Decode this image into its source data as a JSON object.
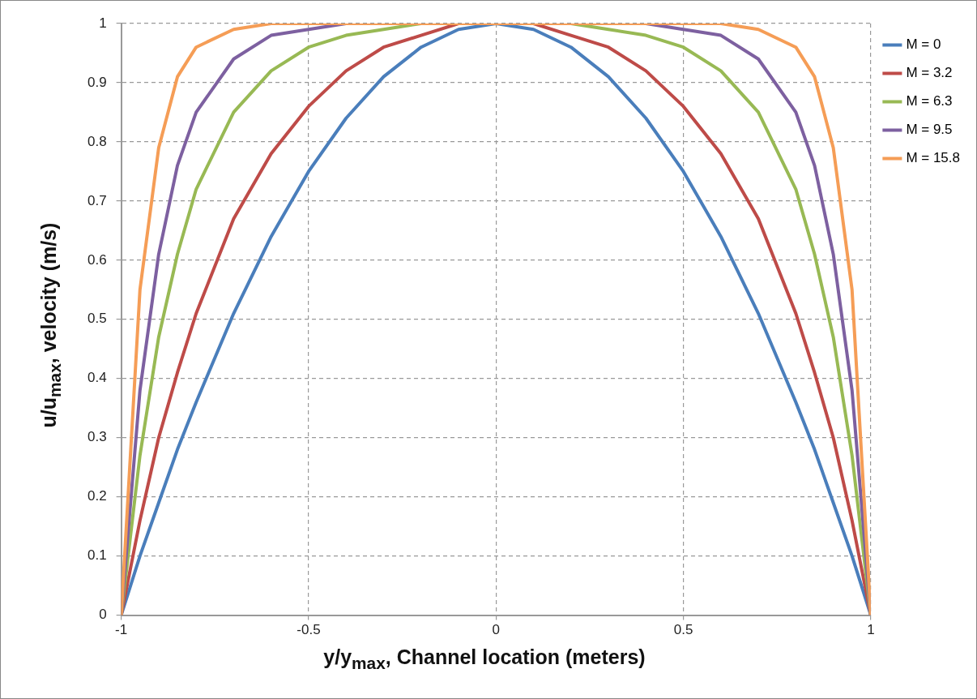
{
  "chart_data": {
    "type": "line",
    "xlabel": "y/y$_{max}$, Channel location (meters)",
    "ylabel": "u/u$_{max}$, velocity (m/s)",
    "x": [
      -1,
      -0.95,
      -0.9,
      -0.85,
      -0.8,
      -0.7,
      -0.6,
      -0.5,
      -0.4,
      -0.3,
      -0.2,
      -0.1,
      0,
      0.1,
      0.2,
      0.3,
      0.4,
      0.5,
      0.6,
      0.7,
      0.8,
      0.85,
      0.9,
      0.95,
      1
    ],
    "series": [
      {
        "name": "M = 0",
        "color": "#4a7ebb",
        "values": [
          0,
          0.1,
          0.19,
          0.28,
          0.36,
          0.51,
          0.64,
          0.75,
          0.84,
          0.91,
          0.96,
          0.99,
          1,
          0.99,
          0.96,
          0.91,
          0.84,
          0.75,
          0.64,
          0.51,
          0.36,
          0.28,
          0.19,
          0.1,
          0
        ]
      },
      {
        "name": "M = 3.2",
        "color": "#be4b48",
        "values": [
          0,
          0.16,
          0.3,
          0.41,
          0.51,
          0.67,
          0.78,
          0.86,
          0.92,
          0.96,
          0.98,
          1,
          1,
          1,
          0.98,
          0.96,
          0.92,
          0.86,
          0.78,
          0.67,
          0.51,
          0.41,
          0.3,
          0.16,
          0
        ]
      },
      {
        "name": "M = 6.3",
        "color": "#98b954",
        "values": [
          0,
          0.27,
          0.47,
          0.61,
          0.72,
          0.85,
          0.92,
          0.96,
          0.98,
          0.99,
          1,
          1,
          1,
          1,
          1,
          0.99,
          0.98,
          0.96,
          0.92,
          0.85,
          0.72,
          0.61,
          0.47,
          0.27,
          0
        ]
      },
      {
        "name": "M = 9.5",
        "color": "#7d60a0",
        "values": [
          0,
          0.38,
          0.61,
          0.76,
          0.85,
          0.94,
          0.98,
          0.99,
          1,
          1,
          1,
          1,
          1,
          1,
          1,
          1,
          1,
          0.99,
          0.98,
          0.94,
          0.85,
          0.76,
          0.61,
          0.38,
          0
        ]
      },
      {
        "name": "M = 15.8",
        "color": "#f59d56",
        "values": [
          0,
          0.55,
          0.79,
          0.91,
          0.96,
          0.99,
          1,
          1,
          1,
          1,
          1,
          1,
          1,
          1,
          1,
          1,
          1,
          1,
          1,
          0.99,
          0.96,
          0.91,
          0.79,
          0.55,
          0
        ]
      }
    ],
    "xlim": [
      -1,
      1
    ],
    "xticks": [
      -1,
      -0.5,
      0,
      0.5,
      1
    ],
    "ylim": [
      0,
      1
    ],
    "yticks": [
      0,
      0.1,
      0.2,
      0.3,
      0.4,
      0.5,
      0.6,
      0.7,
      0.8,
      0.9,
      1
    ],
    "grid": true,
    "legend": "top right",
    "marker": "none",
    "line_style": "solid"
  }
}
